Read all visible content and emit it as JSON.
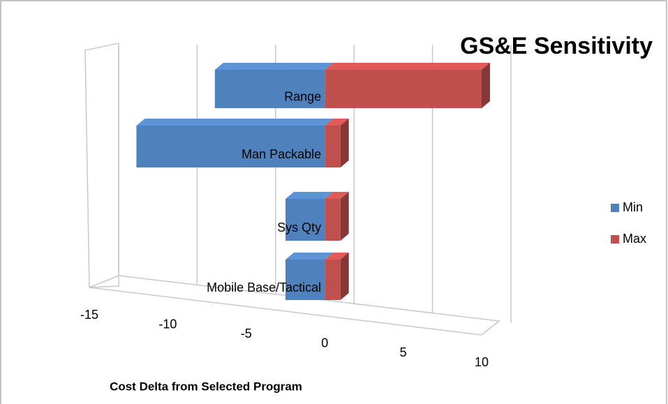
{
  "chart_data": {
    "type": "bar",
    "orientation": "horizontal",
    "title": "GS&E Sensitivity",
    "x_label": "Cost Delta from Selected Program",
    "categories": [
      "Range",
      "Man Packable",
      "Sys Qty",
      "Mobile Base/Tactical"
    ],
    "series": [
      {
        "name": "Min",
        "color": "#4f81bd",
        "values": [
          -7,
          -12,
          -2.5,
          -2.5
        ]
      },
      {
        "name": "Max",
        "color": "#c0504d",
        "values": [
          10,
          1,
          1,
          1
        ]
      }
    ],
    "xlim": [
      -15,
      10
    ],
    "xticks": [
      -15,
      -10,
      -5,
      0,
      5,
      10
    ],
    "grid": true,
    "legend": "right"
  }
}
